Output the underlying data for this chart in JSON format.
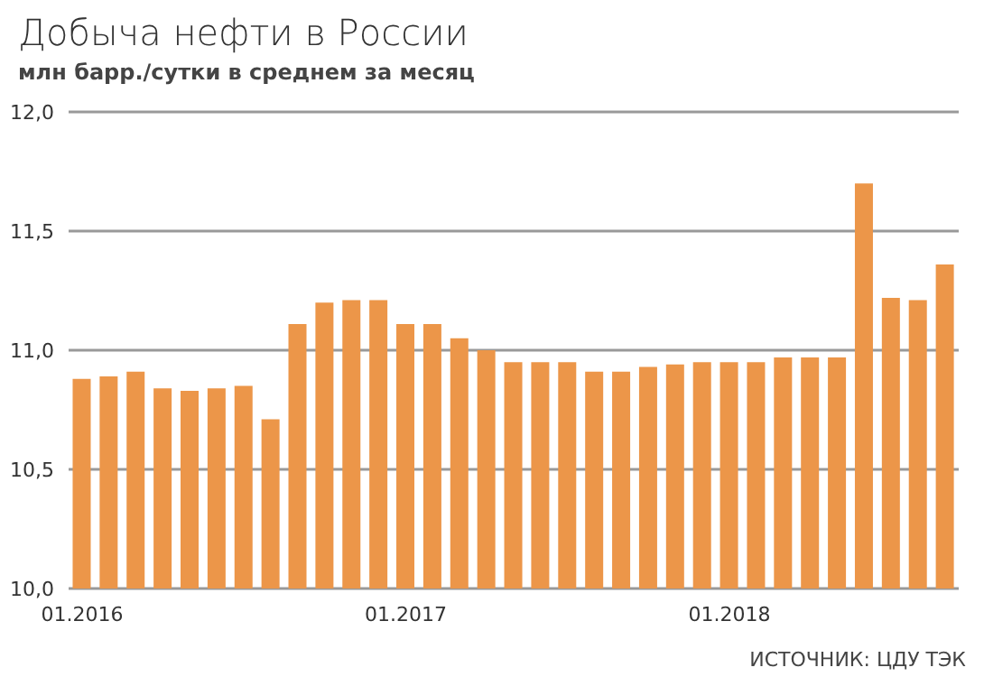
{
  "chart_data": {
    "type": "bar",
    "title": "Добыча нефти в России",
    "subtitle": "млн барр./сутки в среднем за месяц",
    "annotations": [
      "ИСТОЧНИК: ЦДУ ТЭК"
    ],
    "categories": [
      "01.2016",
      null,
      null,
      null,
      null,
      null,
      null,
      null,
      null,
      null,
      null,
      null,
      "01.2017",
      null,
      null,
      null,
      null,
      null,
      null,
      null,
      null,
      null,
      null,
      null,
      "01.2018",
      null,
      null,
      null,
      null,
      null,
      null,
      null,
      null
    ],
    "values": [
      10.88,
      10.89,
      10.91,
      10.84,
      10.83,
      10.84,
      10.85,
      10.71,
      11.11,
      11.2,
      11.21,
      11.21,
      11.11,
      11.11,
      11.05,
      11.0,
      10.95,
      10.95,
      10.95,
      10.91,
      10.91,
      10.93,
      10.94,
      10.95,
      10.95,
      10.95,
      10.97,
      10.97,
      10.97,
      11.7,
      11.22,
      11.21,
      11.36
    ],
    "color": "#ec9649",
    "ylim": [
      10,
      12
    ],
    "yticks": [
      {
        "value": 10,
        "label": "10,0"
      },
      {
        "value": 10.5,
        "label": "10,5"
      },
      {
        "value": 11,
        "label": "11,0"
      },
      {
        "value": 11.5,
        "label": "11,5"
      },
      {
        "value": 12,
        "label": "12,0"
      }
    ],
    "grid": "y",
    "legend": false
  }
}
